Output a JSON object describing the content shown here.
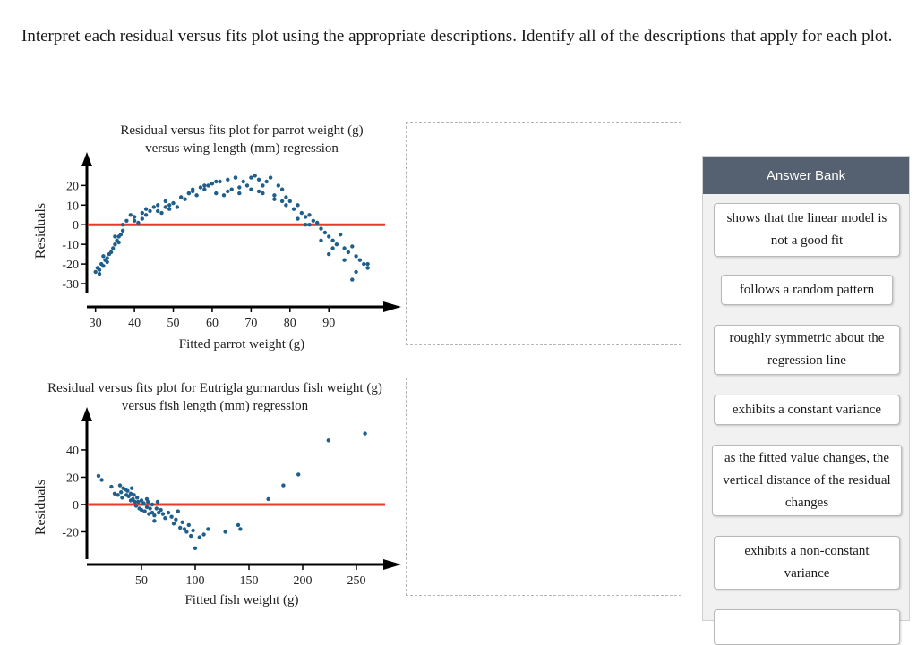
{
  "question": "Interpret each residual versus fits plot using the appropriate descriptions. Identify all of the descriptions that apply for each plot.",
  "answer_bank": {
    "title": "Answer Bank",
    "items": [
      "shows that the linear model is not a good fit",
      "follows a random pattern",
      "roughly symmetric about the regression line",
      "exhibits a constant variance",
      "as the fitted value changes, the vertical distance of the residual changes",
      "exhibits a non-constant variance"
    ]
  },
  "colors": {
    "points": "#1f5f8b",
    "zero_line": "#e8392c",
    "bank_header": "#556070"
  },
  "chart_data": [
    {
      "type": "scatter",
      "title": "Residual versus fits plot for parrot weight (g)",
      "subtitle": "versus wing length (mm) regression",
      "xlabel": "Fitted parrot weight (g)",
      "ylabel": "Residuals",
      "xticks": [
        30,
        40,
        50,
        60,
        70,
        80,
        90
      ],
      "yticks": [
        20,
        10,
        0,
        -10,
        -20,
        -30
      ],
      "xlim": [
        28,
        104
      ],
      "ylim": [
        -35,
        27
      ],
      "reference_line_y": 0,
      "x": [
        30,
        30.5,
        31,
        31.5,
        32,
        32.5,
        33,
        33.5,
        34,
        34.5,
        35,
        35.5,
        36,
        36.5,
        37,
        38,
        39,
        40,
        41,
        42,
        43,
        44,
        45,
        46,
        47,
        48,
        49,
        50,
        51,
        52,
        53,
        54,
        55,
        56,
        57,
        58,
        59,
        60,
        61,
        62,
        63,
        64,
        65,
        66,
        67,
        68,
        69,
        70,
        71,
        72,
        73,
        74,
        75,
        76,
        77,
        78,
        79,
        80,
        81,
        82,
        83,
        84,
        85,
        86,
        87,
        88,
        89,
        90,
        91,
        92,
        93,
        94,
        95,
        96,
        97,
        98,
        99,
        100,
        31,
        33,
        35,
        37,
        40,
        43,
        46,
        49,
        52,
        55,
        58,
        61,
        64,
        67,
        70,
        73,
        76,
        79,
        82,
        85,
        88,
        91,
        94,
        97,
        100,
        32,
        36,
        42,
        48,
        54,
        60,
        66,
        72,
        78,
        84,
        90,
        96
      ],
      "y": [
        -24,
        -22,
        -23,
        -20,
        -21,
        -18,
        -17,
        -15,
        -14,
        -12,
        -10,
        -8,
        -6,
        -5,
        -3,
        2,
        5,
        4,
        1,
        6,
        8,
        7,
        9,
        10,
        6,
        12,
        8,
        11,
        9,
        14,
        13,
        16,
        17,
        15,
        19,
        18,
        20,
        21,
        16,
        22,
        15,
        23,
        18,
        24,
        16,
        22,
        20,
        18,
        25,
        23,
        16,
        22,
        24,
        15,
        20,
        18,
        14,
        12,
        8,
        10,
        6,
        4,
        5,
        2,
        1,
        -2,
        -4,
        -6,
        -8,
        -10,
        -5,
        -12,
        -14,
        -11,
        -16,
        -18,
        -20,
        -22,
        -25,
        -19,
        -6,
        0,
        2,
        5,
        7,
        10,
        14,
        18,
        20,
        22,
        17,
        19,
        24,
        20,
        13,
        10,
        3,
        0,
        -8,
        -12,
        -18,
        -24,
        -20,
        -16,
        -9,
        3,
        9,
        16,
        21,
        24,
        17,
        12,
        0,
        -15,
        -28
      ]
    },
    {
      "type": "scatter",
      "title": "Residual versus fits plot for Eutrigla gurnardus fish weight (g)",
      "subtitle": "versus fish length (mm) regression",
      "xlabel": "Fitted fish weight (g)",
      "ylabel": "Residuals",
      "xticks": [
        50,
        100,
        150,
        200,
        250
      ],
      "yticks": [
        40,
        20,
        0,
        -20
      ],
      "xlim": [
        0,
        275
      ],
      "ylim": [
        -40,
        57
      ],
      "reference_line_y": 0,
      "x": [
        10,
        13,
        22,
        25,
        28,
        30,
        31,
        32,
        33,
        35,
        36,
        37,
        38,
        40,
        40,
        41,
        42,
        43,
        44,
        45,
        46,
        47,
        48,
        50,
        50,
        52,
        53,
        55,
        55,
        56,
        57,
        58,
        60,
        60,
        62,
        62,
        64,
        65,
        66,
        68,
        70,
        72,
        75,
        78,
        80,
        82,
        84,
        86,
        88,
        90,
        92,
        94,
        96,
        98,
        100,
        104,
        108,
        112,
        128,
        140,
        142,
        168,
        182,
        196,
        224,
        258
      ],
      "y": [
        21,
        18,
        13,
        8,
        7,
        14,
        9,
        5,
        12,
        11,
        7,
        10,
        6,
        8,
        3,
        12,
        4,
        7,
        2,
        -1,
        5,
        2,
        -3,
        3,
        -4,
        1,
        -5,
        -2,
        4,
        2,
        -7,
        -3,
        0,
        -6,
        -8,
        -12,
        -3,
        2,
        -6,
        -4,
        -7,
        -10,
        -6,
        -9,
        -14,
        -11,
        -5,
        -17,
        -13,
        -18,
        -20,
        -15,
        -23,
        -19,
        -32,
        -24,
        -22,
        -18,
        -20,
        -15,
        -18,
        4,
        14,
        22,
        47,
        52
      ]
    }
  ]
}
